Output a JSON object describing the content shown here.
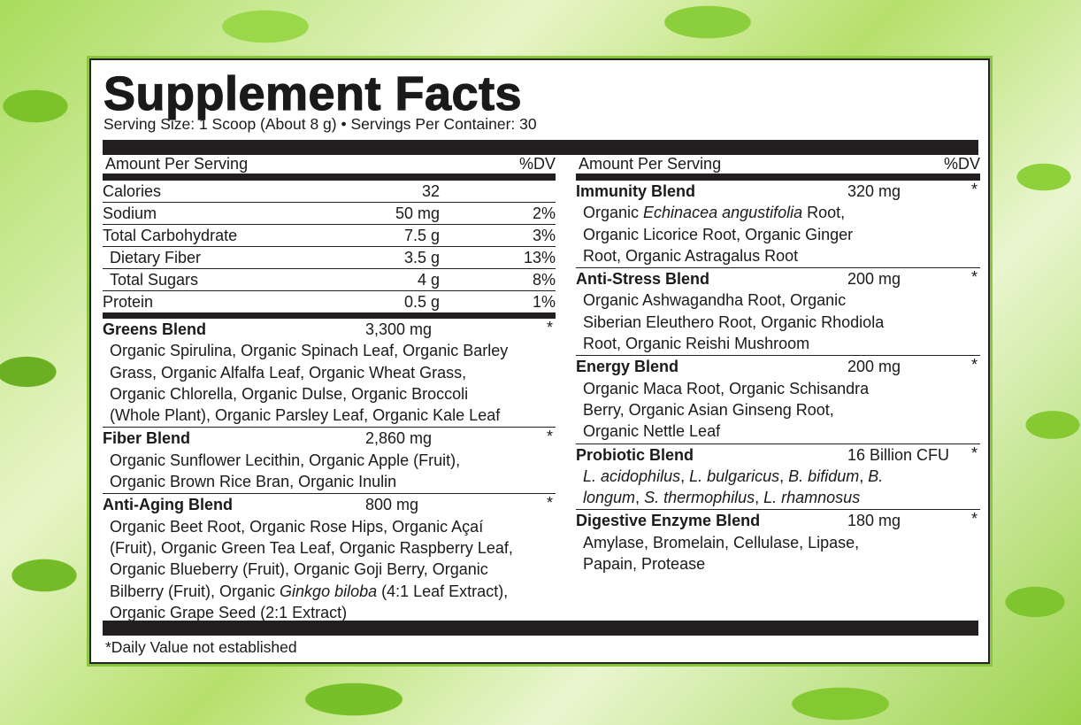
{
  "title": "Supplement Facts",
  "serving": "Serving Size: 1 Scoop (About 8 g) • Servings Per Container: 30",
  "header": {
    "amount": "Amount Per Serving",
    "dv": "%DV"
  },
  "nutrients": [
    {
      "name": "Calories",
      "amount": "32",
      "dv": ""
    },
    {
      "name": "Sodium",
      "amount": "50 mg",
      "dv": "2%"
    },
    {
      "name": "Total Carbohydrate",
      "amount": "7.5 g",
      "dv": "3%"
    },
    {
      "name": "Dietary Fiber",
      "amount": "3.5 g",
      "dv": "13%",
      "indent": true
    },
    {
      "name": "Total Sugars",
      "amount": "4 g",
      "dv": "8%",
      "indent": true
    },
    {
      "name": "Protein",
      "amount": "0.5 g",
      "dv": "1%"
    }
  ],
  "left_blends": [
    {
      "name": "Greens Blend",
      "amount": "3,300 mg",
      "dv": "*",
      "lines": [
        [
          {
            "t": "Organic Spirulina, Organic Spinach Leaf, Organic Barley"
          }
        ],
        [
          {
            "t": "Grass, Organic Alfalfa Leaf, Organic Wheat Grass,"
          }
        ],
        [
          {
            "t": "Organic Chlorella, Organic Dulse, Organic Broccoli"
          }
        ],
        [
          {
            "t": "(Whole Plant), Organic Parsley Leaf, Organic Kale Leaf"
          }
        ]
      ]
    },
    {
      "name": "Fiber Blend",
      "amount": "2,860 mg",
      "dv": "*",
      "lines": [
        [
          {
            "t": "Organic Sunflower Lecithin, Organic Apple (Fruit),"
          }
        ],
        [
          {
            "t": "Organic Brown Rice Bran, Organic Inulin"
          }
        ]
      ]
    },
    {
      "name": "Anti-Aging Blend",
      "amount": "800 mg",
      "dv": "*",
      "lines": [
        [
          {
            "t": "Organic Beet Root, Organic Rose Hips, Organic Açaí"
          }
        ],
        [
          {
            "t": "(Fruit), Organic Green Tea Leaf, Organic Raspberry Leaf,"
          }
        ],
        [
          {
            "t": "Organic Blueberry (Fruit), Organic Goji Berry, Organic"
          }
        ],
        [
          {
            "t": "Bilberry (Fruit), Organic "
          },
          {
            "t": "Ginkgo biloba",
            "i": true
          },
          {
            "t": " (4:1 Leaf Extract),"
          }
        ],
        [
          {
            "t": "Organic Grape Seed (2:1 Extract)"
          }
        ]
      ]
    }
  ],
  "right_blends": [
    {
      "name": "Immunity Blend",
      "amount": "320 mg",
      "dv": "*",
      "lines": [
        [
          {
            "t": "Organic "
          },
          {
            "t": "Echinacea angustifolia",
            "i": true
          },
          {
            "t": " Root,"
          }
        ],
        [
          {
            "t": "Organic Licorice Root, Organic Ginger"
          }
        ],
        [
          {
            "t": "Root, Organic Astragalus Root"
          }
        ]
      ]
    },
    {
      "name": "Anti-Stress Blend",
      "amount": "200 mg",
      "dv": "*",
      "lines": [
        [
          {
            "t": "Organic Ashwagandha Root, Organic"
          }
        ],
        [
          {
            "t": "Siberian Eleuthero Root, Organic Rhodiola"
          }
        ],
        [
          {
            "t": "Root, Organic Reishi Mushroom"
          }
        ]
      ]
    },
    {
      "name": "Energy Blend",
      "amount": "200 mg",
      "dv": "*",
      "lines": [
        [
          {
            "t": "Organic Maca Root, Organic Schisandra"
          }
        ],
        [
          {
            "t": "Berry, Organic Asian Ginseng Root,"
          }
        ],
        [
          {
            "t": "Organic Nettle Leaf"
          }
        ]
      ]
    },
    {
      "name": "Probiotic Blend",
      "amount": "16 Billion CFU",
      "dv": "*",
      "lines": [
        [
          {
            "t": "L. acidophilus",
            "i": true
          },
          {
            "t": ", "
          },
          {
            "t": "L. bulgaricus",
            "i": true
          },
          {
            "t": ", "
          },
          {
            "t": "B. bifidum",
            "i": true
          },
          {
            "t": ", "
          },
          {
            "t": "B.",
            "i": true
          }
        ],
        [
          {
            "t": "longum",
            "i": true
          },
          {
            "t": ", "
          },
          {
            "t": "S. thermophilus",
            "i": true
          },
          {
            "t": ", "
          },
          {
            "t": "L. rhamnosus",
            "i": true
          }
        ]
      ]
    },
    {
      "name": "Digestive Enzyme Blend",
      "amount": "180 mg",
      "dv": "*",
      "lines": [
        [
          {
            "t": "Amylase, Bromelain, Cellulase, Lipase,"
          }
        ],
        [
          {
            "t": "Papain, Protease"
          }
        ]
      ]
    }
  ],
  "footnote": "*Daily Value not established"
}
